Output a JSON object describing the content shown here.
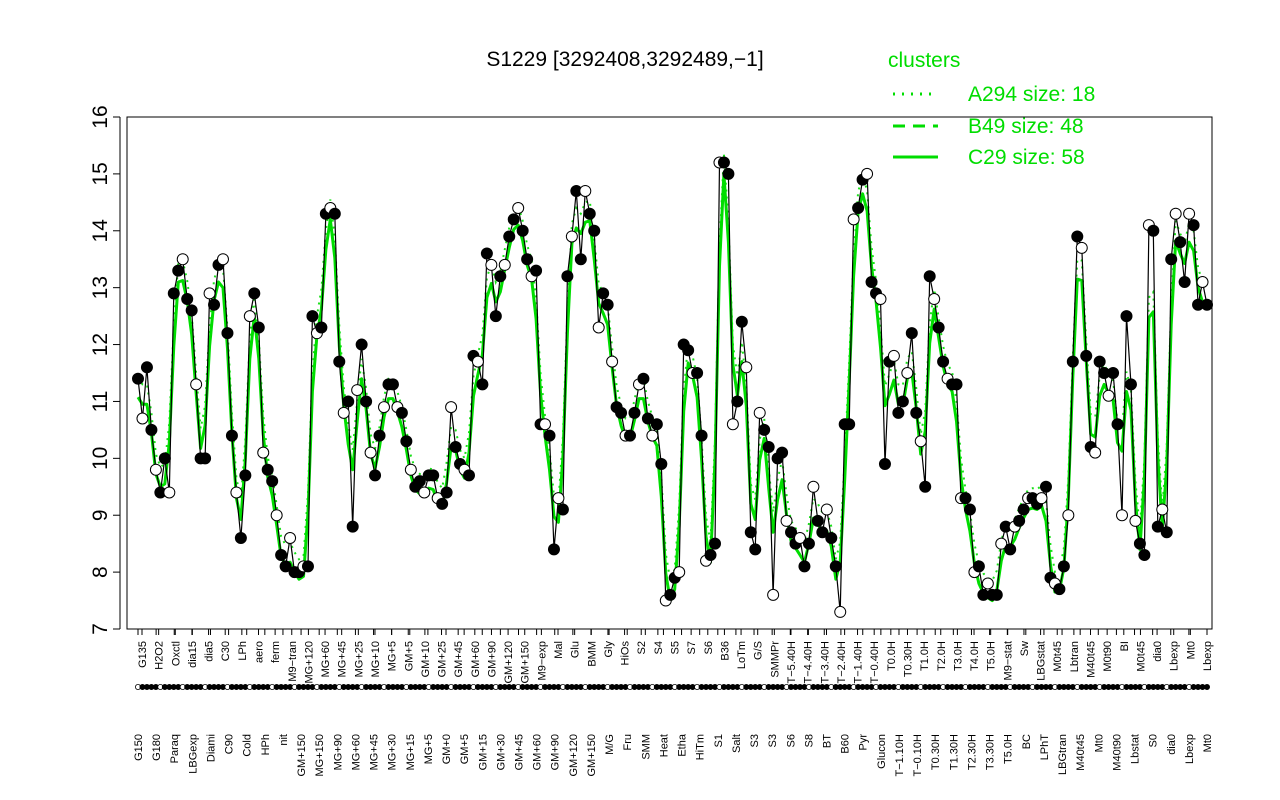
{
  "chart_data": {
    "type": "line",
    "title": "S1229 [3292408,3292489,−1]",
    "xlabel": "",
    "ylabel": "",
    "ylim": [
      7,
      16
    ],
    "yticks": [
      "7",
      "8",
      "9",
      "10",
      "11",
      "12",
      "13",
      "14",
      "15",
      "16"
    ],
    "grid": false,
    "legend": {
      "position": "top-right",
      "title": "clusters",
      "color": "#00dd00",
      "entries": [
        {
          "label": "A294 size: 18",
          "style": "dotted"
        },
        {
          "label": "B49 size: 48",
          "style": "dashed"
        },
        {
          "label": "C29 size: 58",
          "style": "solid"
        }
      ]
    },
    "colors": {
      "series": "#00dd00",
      "observed": "#000000",
      "open_point": "#ffffff",
      "filled_point": "#000000"
    },
    "x_tick_labels_top": [
      "G135",
      "H2O2",
      "Oxctl",
      "dia15",
      "dia5",
      "C30",
      "LPh",
      "aero",
      "ferm",
      "M9−tran",
      "MG+120",
      "MG+60",
      "MG+45",
      "MG+25",
      "MG+10",
      "MG+5",
      "GM+5",
      "GM+10",
      "GM+25",
      "GM+45",
      "GM+60",
      "GM+90",
      "GM+120",
      "GM+150",
      "M9−exp",
      "Mal",
      "Glu",
      "BMM",
      "Gly",
      "HiOs",
      "S2",
      "S4",
      "S5",
      "S7",
      "S6",
      "B36",
      "LoTm",
      "G/S",
      "SMMPr",
      "T−5.40H",
      "T−4.40H",
      "T−3.40H",
      "T−2.40H",
      "T−1.40H",
      "T−0.40H",
      "T0.0H",
      "T0.30H",
      "T1.0H",
      "T2.0H",
      "T3.0H",
      "T4.0H",
      "T5.0H",
      "M9−stat",
      "Sw",
      "LBGstat",
      "M0t45",
      "Lbtran",
      "M40t45",
      "M0t90",
      "BI",
      "M0t45",
      "dia0",
      "Lbexp",
      "Mt0",
      "Lbexp"
    ],
    "x_tick_labels_bottom": [
      "G150",
      "G180",
      "Paraq",
      "LBGexp",
      "Diami",
      "C90",
      "Cold",
      "HPh",
      "nit",
      "GM+150",
      "MG+150",
      "MG+90",
      "MG+60",
      "MG+45",
      "MG+30",
      "MG+15",
      "MG+5",
      "GM+0",
      "GM+5",
      "GM+15",
      "GM+30",
      "GM+45",
      "GM+60",
      "GM+90",
      "GM+120",
      "GM+150",
      "M/G",
      "Fru",
      "SMM",
      "Heat",
      "Etha",
      "HiTm",
      "S1",
      "Salt",
      "S3",
      "S3",
      "S6",
      "S8",
      "BT",
      "B60",
      "Pyr",
      "Glucon",
      "T−1.10H",
      "T−0.10H",
      "T0.30H",
      "T1.30H",
      "T2.30H",
      "T3.30H",
      "T5.0H",
      "BC",
      "LPhT",
      "LBGtran",
      "M40t45",
      "Mt0",
      "M40t90",
      "Lbstat",
      "S0",
      "dia0",
      "Lbexp",
      "Mt0"
    ],
    "series": [
      {
        "name": "",
        "marker": "filled/open circles",
        "values": [
          11.4,
          10.7,
          11.6,
          10.5,
          9.8,
          9.4,
          10.0,
          9.4,
          12.9,
          13.3,
          13.5,
          12.8,
          12.6,
          11.3,
          10.0,
          10.0,
          12.9,
          12.7,
          13.4,
          13.5,
          12.2,
          10.4,
          9.4,
          8.6,
          9.7,
          12.5,
          12.9,
          12.3,
          10.1,
          9.8,
          9.6,
          9.0,
          8.3,
          8.1,
          8.6,
          8.0,
          8.0,
          8.1,
          8.1,
          12.5,
          12.2,
          12.3,
          14.3,
          14.4,
          14.3,
          11.7,
          10.8,
          11.0,
          8.8,
          11.2,
          12.0,
          11.0,
          10.1,
          9.7,
          10.4,
          10.9,
          11.3,
          11.3,
          10.9,
          10.8,
          10.3,
          9.8,
          9.5,
          9.6,
          9.4,
          9.7,
          9.7,
          9.3,
          9.2,
          9.4,
          10.9,
          10.2,
          9.9,
          9.8,
          9.7,
          11.8,
          11.7,
          11.3,
          13.6,
          13.4,
          12.5,
          13.2,
          13.4,
          13.9,
          14.2,
          14.4,
          14.0,
          13.5,
          13.2,
          13.3,
          10.6,
          10.6,
          10.4,
          8.4,
          9.3,
          9.1,
          13.2,
          13.9,
          14.7,
          13.5,
          14.7,
          14.3,
          14.0,
          12.3,
          12.9,
          12.7,
          11.7,
          10.9,
          10.8,
          10.4,
          10.4,
          10.8,
          11.3,
          11.4,
          10.7,
          10.4,
          10.6,
          9.9,
          7.5,
          7.6,
          7.9,
          8.0,
          12.0,
          11.9,
          11.5,
          11.5,
          10.4,
          8.2,
          8.3,
          8.5,
          15.2,
          15.2,
          15.0,
          10.6,
          11.0,
          12.4,
          11.6,
          8.7,
          8.4,
          10.8,
          10.5,
          10.2,
          7.6,
          10.0,
          10.1,
          8.9,
          8.7,
          8.5,
          8.6,
          8.1,
          8.5,
          9.5,
          8.9,
          8.7,
          9.1,
          8.6,
          8.1,
          7.3,
          10.6,
          10.6,
          14.2,
          14.4,
          14.9,
          15.0,
          13.1,
          12.9,
          12.8,
          9.9,
          11.7,
          11.8,
          10.8,
          11.0,
          11.5,
          12.2,
          10.8,
          10.3,
          9.5,
          13.2,
          12.8,
          12.3,
          11.7,
          11.4,
          11.3,
          11.3,
          9.3,
          9.3,
          9.1,
          8.0,
          8.1,
          7.6,
          7.8,
          7.6,
          7.6,
          8.5,
          8.8,
          8.4,
          8.8,
          8.9,
          9.1,
          9.3,
          9.3,
          9.2,
          9.3,
          9.5,
          7.9,
          7.8,
          7.7,
          8.1,
          9.0,
          11.7,
          13.9,
          13.7,
          11.8,
          10.2,
          10.1,
          11.7,
          11.5,
          11.1,
          11.5,
          10.6,
          9.0,
          12.5,
          11.3,
          8.9,
          8.5,
          8.3,
          14.1,
          14.0,
          8.8,
          9.1,
          8.7,
          13.5,
          14.3,
          13.8,
          13.1,
          14.3,
          14.1,
          12.7,
          13.1,
          12.7
        ]
      }
    ]
  }
}
